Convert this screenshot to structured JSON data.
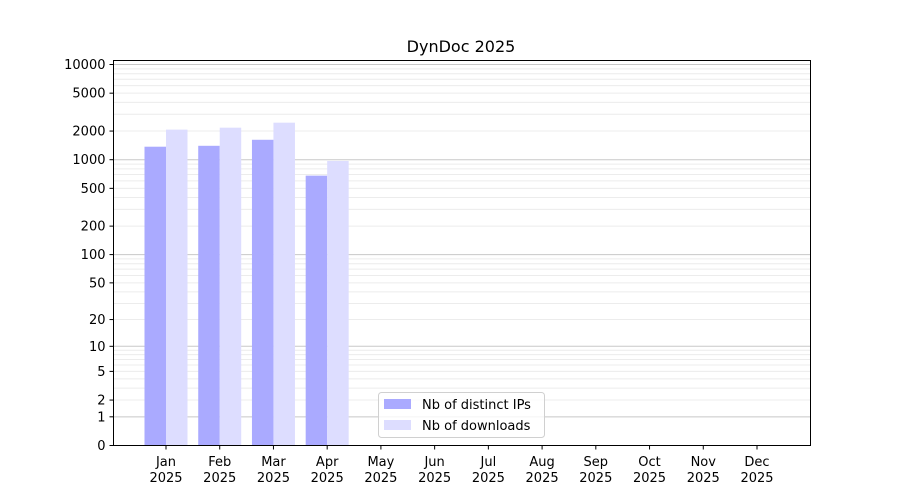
{
  "chart_data": {
    "type": "bar",
    "title": "DynDoc 2025",
    "xlabel": "",
    "ylabel": "",
    "y_scale": "log10(1+y)",
    "ylim": [
      0,
      12000
    ],
    "y_ticks": [
      0,
      1,
      2,
      5,
      10,
      20,
      50,
      100,
      200,
      500,
      1000,
      2000,
      5000,
      10000
    ],
    "grid": true,
    "legend_position": "bottom-center",
    "categories": [
      [
        "Jan",
        "2025"
      ],
      [
        "Feb",
        "2025"
      ],
      [
        "Mar",
        "2025"
      ],
      [
        "Apr",
        "2025"
      ],
      [
        "May",
        "2025"
      ],
      [
        "Jun",
        "2025"
      ],
      [
        "Jul",
        "2025"
      ],
      [
        "Aug",
        "2025"
      ],
      [
        "Sep",
        "2025"
      ],
      [
        "Oct",
        "2025"
      ],
      [
        "Nov",
        "2025"
      ],
      [
        "Dec",
        "2025"
      ]
    ],
    "series": [
      {
        "name": "Nb of distinct IPs",
        "color": "#aaaaff",
        "values": [
          1370,
          1400,
          1620,
          680,
          0,
          0,
          0,
          0,
          0,
          0,
          0,
          0
        ]
      },
      {
        "name": "Nb of downloads",
        "color": "#ddddff",
        "values": [
          2070,
          2170,
          2450,
          970,
          0,
          0,
          0,
          0,
          0,
          0,
          0,
          0
        ]
      }
    ]
  }
}
